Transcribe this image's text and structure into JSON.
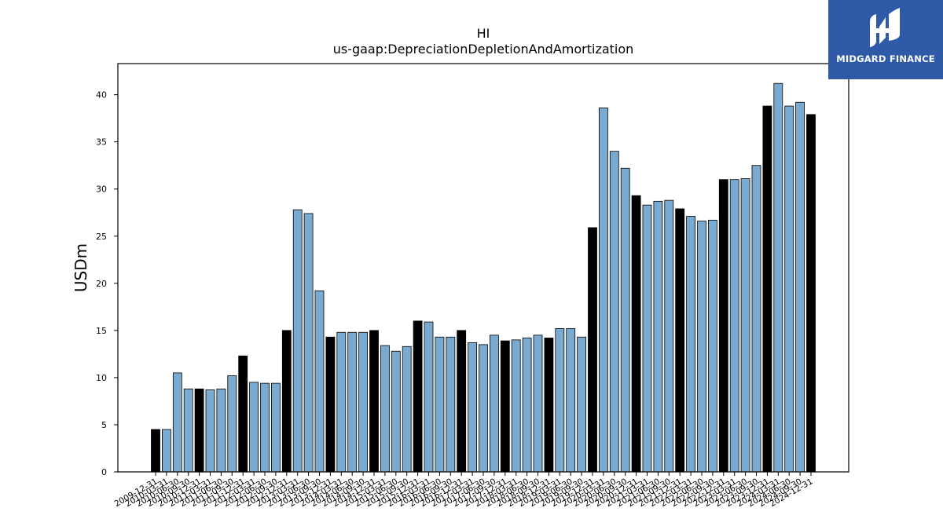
{
  "brand": {
    "name": "MIDGARD FINANCE",
    "icon": "midgard-logo-icon",
    "background": "#2f5aa8"
  },
  "chart_data": {
    "type": "bar",
    "title": "HI",
    "subtitle": "us-gaap:DepreciationDepletionAndAmortization",
    "xlabel": "",
    "ylabel": "USDm",
    "ylim": [
      0,
      43.3
    ],
    "yticks": [
      0,
      5,
      10,
      15,
      20,
      25,
      30,
      35,
      40
    ],
    "grid": false,
    "colors": {
      "annual": "#000000",
      "quarterly": "#7aaad0",
      "edge": "#000000"
    },
    "categories": [
      "2009-12-31",
      "2010-03-31",
      "2010-06-30",
      "2010-09-30",
      "2010-12-31",
      "2011-03-31",
      "2011-06-30",
      "2011-09-30",
      "2011-12-31",
      "2012-03-31",
      "2012-06-30",
      "2012-09-30",
      "2012-12-31",
      "2013-03-31",
      "2013-06-30",
      "2013-09-30",
      "2013-12-31",
      "2014-03-31",
      "2014-06-30",
      "2014-09-30",
      "2014-12-31",
      "2015-03-31",
      "2015-06-30",
      "2015-09-30",
      "2015-12-31",
      "2016-03-31",
      "2016-06-30",
      "2016-09-30",
      "2016-12-31",
      "2017-03-31",
      "2017-06-30",
      "2017-09-30",
      "2017-12-31",
      "2018-03-31",
      "2018-06-30",
      "2018-09-30",
      "2018-12-31",
      "2019-03-31",
      "2019-06-30",
      "2019-09-30",
      "2019-12-31",
      "2020-03-31",
      "2020-06-30",
      "2020-09-30",
      "2020-12-31",
      "2021-03-31",
      "2021-06-30",
      "2021-09-30",
      "2021-12-31",
      "2022-03-31",
      "2022-06-30",
      "2022-09-30",
      "2022-12-31",
      "2023-03-31",
      "2023-06-30",
      "2023-09-30",
      "2023-12-31",
      "2024-03-31",
      "2024-06-30",
      "2024-09-30",
      "2024-12-31"
    ],
    "values": [
      4.5,
      4.5,
      10.5,
      8.8,
      8.8,
      8.7,
      8.8,
      10.2,
      12.3,
      9.5,
      9.4,
      9.4,
      15.0,
      27.8,
      27.4,
      19.2,
      14.3,
      14.8,
      14.8,
      14.8,
      15.0,
      13.4,
      12.8,
      13.3,
      16.0,
      15.9,
      14.3,
      14.3,
      15.0,
      13.7,
      13.5,
      14.5,
      13.9,
      14.0,
      14.2,
      14.5,
      14.2,
      15.2,
      15.2,
      14.3,
      25.9,
      38.6,
      34.0,
      32.2,
      29.3,
      28.3,
      28.7,
      28.8,
      27.9,
      27.1,
      26.6,
      26.7,
      31.0,
      31.0,
      31.1,
      32.5,
      38.8,
      41.2,
      38.8,
      39.2,
      37.9
    ],
    "annual_flags": [
      true,
      false,
      false,
      false,
      true,
      false,
      false,
      false,
      true,
      false,
      false,
      false,
      true,
      false,
      false,
      false,
      true,
      false,
      false,
      false,
      true,
      false,
      false,
      false,
      true,
      false,
      false,
      false,
      true,
      false,
      false,
      false,
      true,
      false,
      false,
      false,
      true,
      false,
      false,
      false,
      true,
      false,
      false,
      false,
      true,
      false,
      false,
      false,
      true,
      false,
      false,
      false,
      true,
      false,
      false,
      false,
      true,
      false,
      false,
      false,
      true
    ]
  }
}
